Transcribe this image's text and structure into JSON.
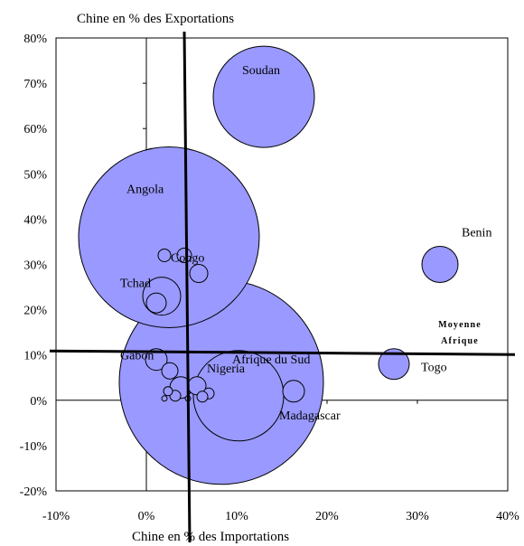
{
  "chart_data": {
    "type": "scatter",
    "subtype": "bubble",
    "title": "",
    "xlabel": "Chine en % des Importations",
    "ylabel": "Chine en % des Exportations",
    "xlim": [
      -10,
      40
    ],
    "ylim": [
      -20,
      80
    ],
    "x_ticks": [
      -10,
      0,
      10,
      20,
      30,
      40
    ],
    "y_ticks": [
      -20,
      -10,
      0,
      10,
      20,
      30,
      40,
      50,
      60,
      70,
      80
    ],
    "x_tick_labels": [
      "-10%",
      "0%",
      "10%",
      "20%",
      "30%",
      "40%"
    ],
    "y_tick_labels": [
      "-20%",
      "-10%",
      "0%",
      "10%",
      "20%",
      "30%",
      "40%",
      "50%",
      "60%",
      "70%",
      "80%"
    ],
    "grid": false,
    "bubble_color": "#9999ff",
    "bubble_edge": "#000000",
    "average_lines": {
      "x": 4.5,
      "y": 10.5,
      "label": [
        "Moyenne",
        "Afrique"
      ]
    },
    "points": [
      {
        "name": "Soudan",
        "x": 13.0,
        "y": 67.0,
        "size": 5.6
      },
      {
        "name": "Benin",
        "x": 32.5,
        "y": 30.0,
        "size": 2.0
      },
      {
        "name": "Angola",
        "x": 2.5,
        "y": 36.0,
        "size": 10.0
      },
      {
        "name": "Congo",
        "x": 4.2,
        "y": 32.0,
        "size": 0.8
      },
      {
        "name": "",
        "x": 2.0,
        "y": 32.0,
        "size": 0.7
      },
      {
        "name": "",
        "x": 5.8,
        "y": 28.0,
        "size": 1.0
      },
      {
        "name": "Tchad",
        "x": 1.7,
        "y": 23.0,
        "size": 2.1
      },
      {
        "name": "",
        "x": 1.1,
        "y": 21.5,
        "size": 1.1
      },
      {
        "name": "Afrique du Sud",
        "x": 8.3,
        "y": 4.0,
        "size": 11.3
      },
      {
        "name": "Nigeria",
        "x": 10.2,
        "y": 1.0,
        "size": 5.0
      },
      {
        "name": "Gabon",
        "x": 1.1,
        "y": 9.0,
        "size": 1.2
      },
      {
        "name": "Togo",
        "x": 27.4,
        "y": 8.0,
        "size": 1.7
      },
      {
        "name": "Madagascar",
        "x": 16.3,
        "y": 2.0,
        "size": 1.2
      },
      {
        "name": "",
        "x": 2.6,
        "y": 6.5,
        "size": 0.9
      },
      {
        "name": "",
        "x": 3.8,
        "y": 2.8,
        "size": 1.2
      },
      {
        "name": "",
        "x": 5.6,
        "y": 3.2,
        "size": 1.0
      },
      {
        "name": "",
        "x": 2.4,
        "y": 2.0,
        "size": 0.5
      },
      {
        "name": "",
        "x": 6.9,
        "y": 1.5,
        "size": 0.6
      },
      {
        "name": "",
        "x": 3.2,
        "y": 1.0,
        "size": 0.6
      },
      {
        "name": "",
        "x": 6.2,
        "y": 0.8,
        "size": 0.6
      },
      {
        "name": "",
        "x": 4.6,
        "y": 0.4,
        "size": 0.3
      },
      {
        "name": "",
        "x": 2.0,
        "y": 0.4,
        "size": 0.3
      }
    ]
  }
}
